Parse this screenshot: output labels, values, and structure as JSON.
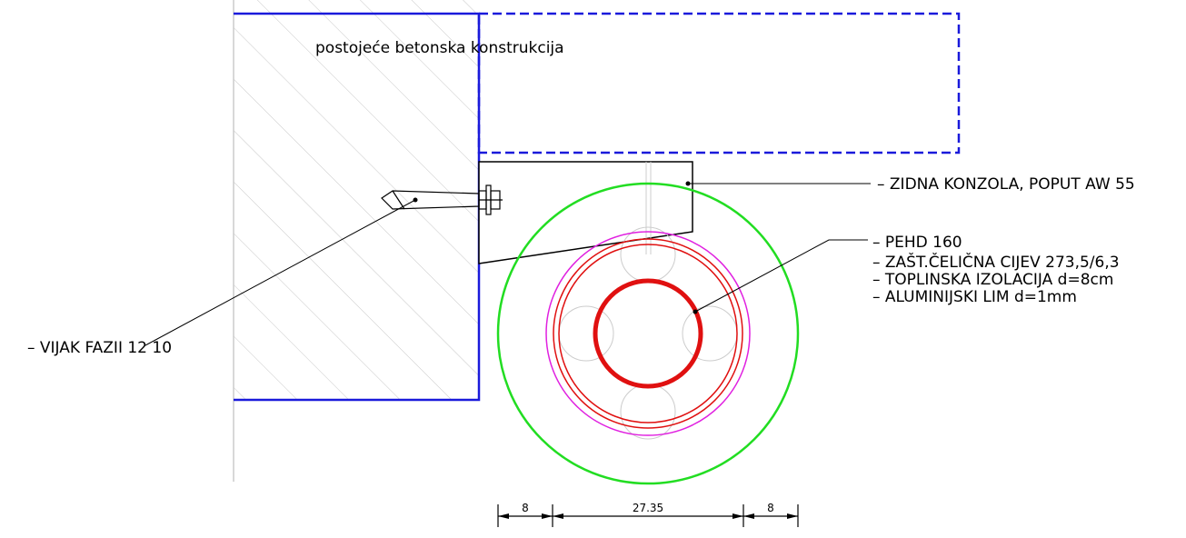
{
  "labels": {
    "wall": "postojeće betonska konstrukcija",
    "bracket": "– ZIDNA KONZOLA, POPUT AW 55",
    "pipe": "– PEHD 160",
    "steel": "– ZAŠT.ČELIČNA CIJEV 273,5/6,3",
    "insulation": "– TOPLINSKA IZOLACIJA d=8cm",
    "sheet": "– ALUMINIJSKI LIM d=1mm",
    "bolt": "– VIJAK FAZII 12 10"
  },
  "dimensions": [
    "8",
    "27.35",
    "8"
  ]
}
